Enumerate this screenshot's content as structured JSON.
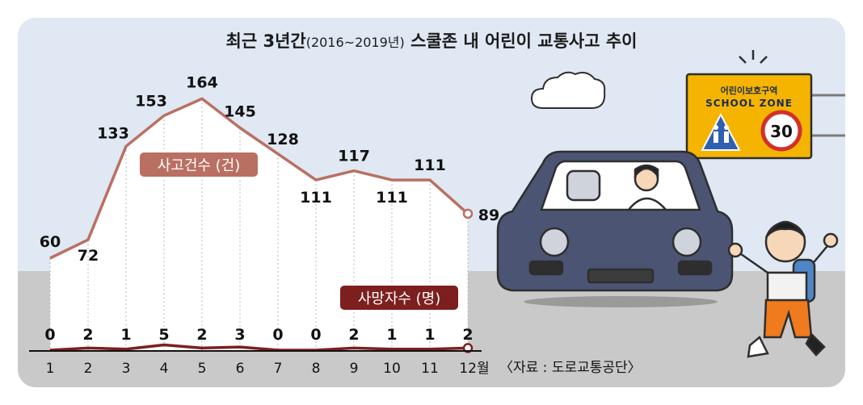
{
  "title": "최근 3년간",
  "title_period": "(2016~2019년)",
  "title_rest": "스쿨존 내 어린이 교통사고 추이",
  "source": "〈자료 : 도로교통공단〉",
  "chart_data": {
    "type": "line",
    "categories": [
      "1",
      "2",
      "3",
      "4",
      "5",
      "6",
      "7",
      "8",
      "9",
      "10",
      "11",
      "12월"
    ],
    "series": [
      {
        "name": "사고건수 (건)",
        "values": [
          60,
          72,
          133,
          153,
          164,
          145,
          128,
          111,
          117,
          111,
          111,
          89
        ],
        "color": "#b97063"
      },
      {
        "name": "사망자수 (명)",
        "values": [
          0,
          2,
          1,
          5,
          2,
          3,
          0,
          0,
          2,
          1,
          1,
          2
        ],
        "color": "#7d1f1f"
      }
    ],
    "grid": true
  },
  "sign": {
    "korean": "어린이보호구역",
    "english": "SCHOOL ZONE",
    "speed_limit": "30",
    "color": "#f4b400"
  },
  "colors": {
    "sky": "#dfe8f3",
    "road": "#c9c9c9",
    "car": "#4b5573"
  }
}
